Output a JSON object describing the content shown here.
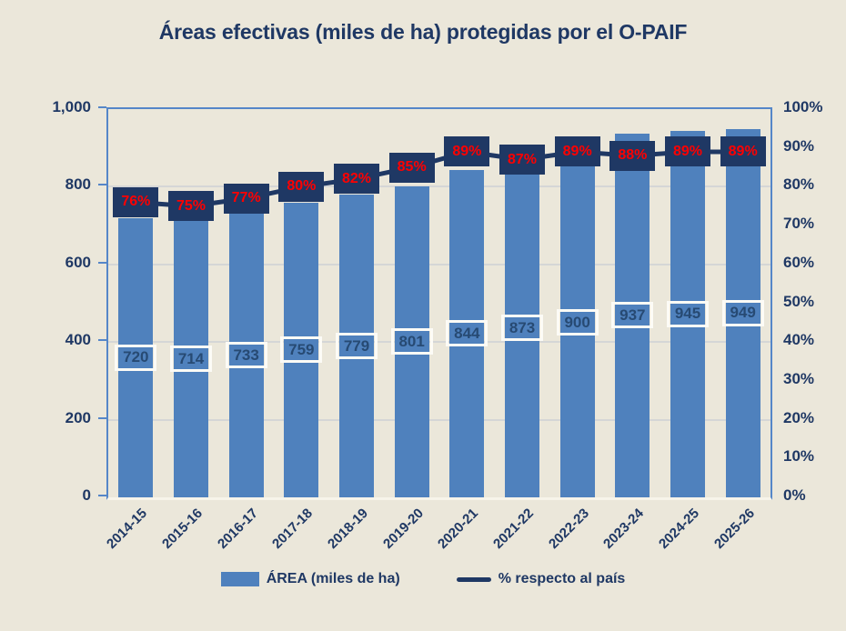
{
  "title": "Áreas efectivas (miles de ha) protegidas por el O-PAIF",
  "chart_data": {
    "type": "bar",
    "combo": "bar+line dual axis",
    "categories": [
      "2014-15",
      "2015-16",
      "2016-17",
      "2017-18",
      "2018-19",
      "2019-20",
      "2020-21",
      "2021-22",
      "2022-23",
      "2023-24",
      "2024-25",
      "2025-26"
    ],
    "series": [
      {
        "name": "ÁREA (miles de ha)",
        "type": "bar",
        "axis": "left",
        "values": [
          720,
          714,
          733,
          759,
          779,
          801,
          844,
          873,
          900,
          937,
          945,
          949
        ],
        "color": "#4F81BD",
        "data_labels": "inside center, white-bordered box"
      },
      {
        "name": "% respecto al país",
        "type": "line",
        "axis": "right",
        "values": [
          76,
          75,
          77,
          80,
          82,
          85,
          89,
          87,
          89,
          88,
          89,
          89
        ],
        "value_labels": [
          "76%",
          "75%",
          "77%",
          "80%",
          "82%",
          "85%",
          "89%",
          "87%",
          "89%",
          "88%",
          "89%",
          "89%"
        ],
        "color": "#1F3864",
        "label_color": "#FF0000",
        "data_labels": "navy box with red percentage text on line"
      }
    ],
    "left_axis": {
      "min": 0,
      "max": 1000,
      "step": 200,
      "tick_labels_top_to_bottom": [
        "1,000",
        "800",
        "600",
        "400",
        "200",
        "0"
      ]
    },
    "right_axis": {
      "min": 0,
      "max": 100,
      "step": 10,
      "tick_labels_top_to_bottom": [
        "100%",
        "90%",
        "80%",
        "70%",
        "60%",
        "50%",
        "40%",
        "30%",
        "20%",
        "10%",
        "0%"
      ]
    },
    "grid": "horizontal gridlines every 200 units (20%)",
    "legend_position": "bottom"
  },
  "colors": {
    "background": "#EBE7DA",
    "bar": "#4F81BD",
    "navy": "#1F3864",
    "pct_label_text": "#FF0000",
    "bar_value_text": "#274A73",
    "plot_border": "#5586C8",
    "gridline": "#CDD0D4",
    "value_box_border": "#FCFBF6"
  }
}
